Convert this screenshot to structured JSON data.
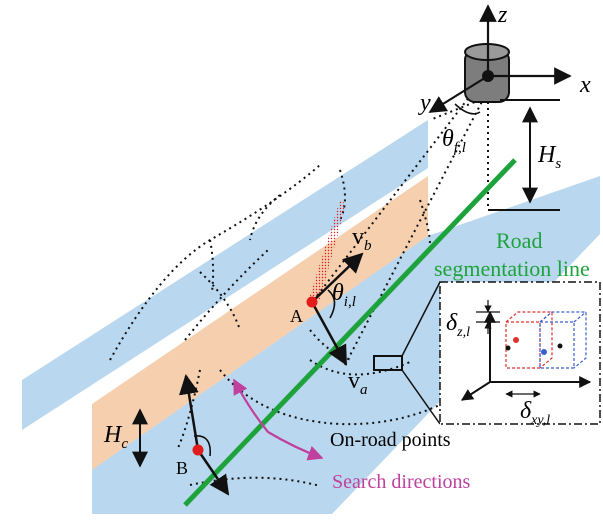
{
  "colors": {
    "road_surface": "#b9d7ee",
    "wall": "#f6cfae",
    "segmentation_line": "#1ea33c",
    "search_arrow": "#c0409e",
    "point": "#e21b1b",
    "black": "#111111",
    "inset_red": "#e03030",
    "inset_blue": "#3a5fd0"
  },
  "axes": {
    "z": "z",
    "x": "x",
    "y": "y"
  },
  "labels": {
    "sensor_height": "H",
    "sensor_height_sub": "s",
    "curb_height": "H",
    "curb_height_sub": "c",
    "fov_angle": "θ",
    "fov_angle_sub": "f,l",
    "incidence_angle": "θ",
    "incidence_angle_sub": "i,l",
    "vector_b": "v",
    "vector_b_sub": "b",
    "vector_a": "v",
    "vector_a_sub": "a",
    "point_a": "A",
    "point_b": "B",
    "road_segmentation_line_1": "Road",
    "road_segmentation_line_2": "segmentation line",
    "on_road_points": "On-road points",
    "search_directions": "Search directions",
    "delta_z": "δ",
    "delta_z_sub": "z,l",
    "delta_xy": "δ",
    "delta_xy_sub": "xy,l"
  }
}
